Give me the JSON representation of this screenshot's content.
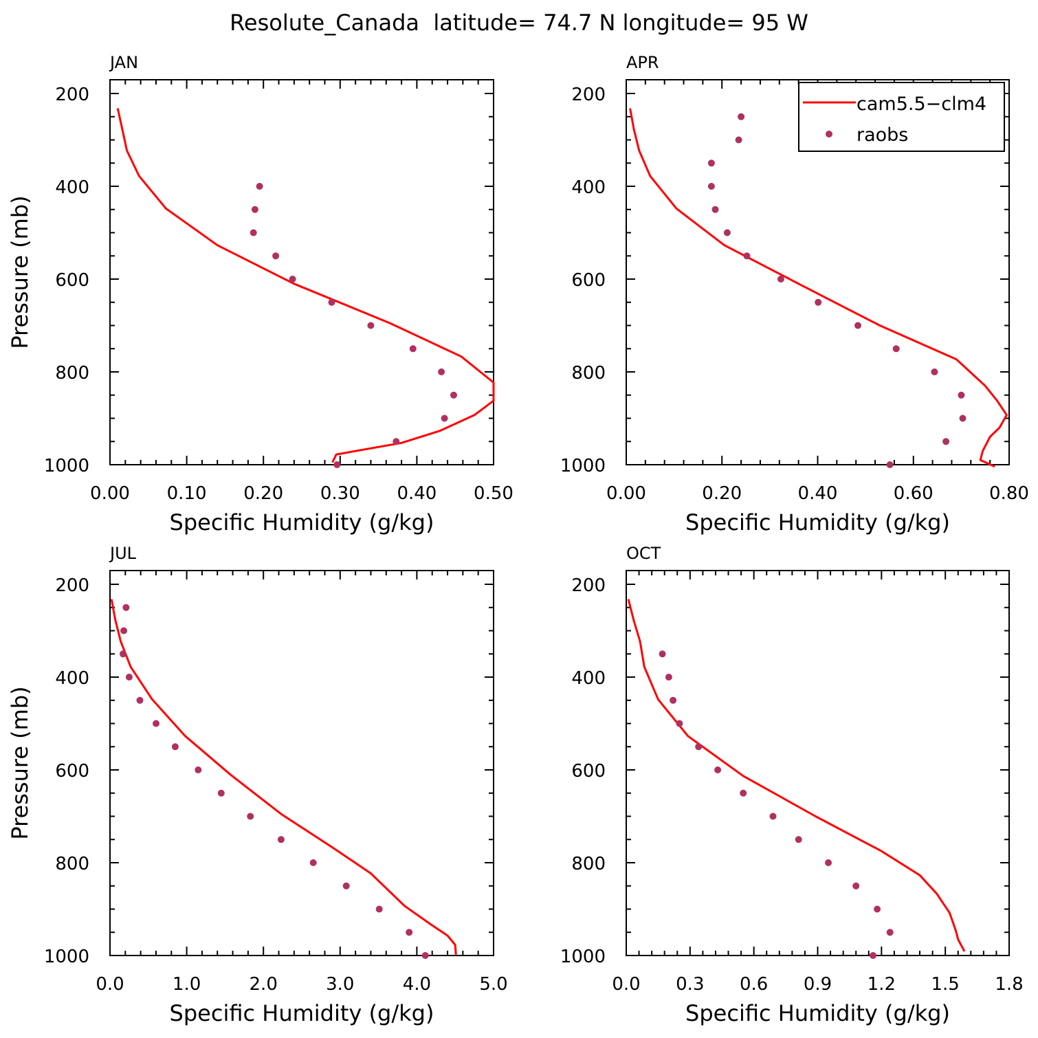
{
  "figure": {
    "title": "Resolute_Canada  latitude= 74.7 N longitude= 95 W"
  },
  "legend": {
    "placement": "top-right of APR panel",
    "model_label": "cam5.5−clm4",
    "obs_label": "raobs"
  },
  "colors": {
    "model": "#ff0000",
    "obs": "#b03060",
    "axis": "#000000"
  },
  "chart_data": [
    {
      "type": "line",
      "panel": "JAN",
      "title": "JAN",
      "xlabel": "Specific Humidity (g/kg)",
      "ylabel": "Pressure (mb)",
      "xlim": [
        0,
        0.5
      ],
      "ylim": [
        1000,
        200
      ],
      "y_inverted": true,
      "xticks": [
        "0.00",
        "0.10",
        "0.20",
        "0.30",
        "0.40",
        "0.50"
      ],
      "yticks": [
        "200",
        "400",
        "600",
        "800",
        "1000"
      ],
      "series": [
        {
          "name": "cam5.5−clm4",
          "style": "line",
          "points": [
            [
              0.01,
              232
            ],
            [
              0.016,
              277
            ],
            [
              0.022,
              323
            ],
            [
              0.038,
              378
            ],
            [
              0.073,
              448
            ],
            [
              0.14,
              527
            ],
            [
              0.24,
              610
            ],
            [
              0.365,
              695
            ],
            [
              0.458,
              767
            ],
            [
              0.5,
              823
            ],
            [
              0.5,
              862
            ],
            [
              0.475,
              893
            ],
            [
              0.43,
              927
            ],
            [
              0.38,
              953
            ],
            [
              0.295,
              978
            ],
            [
              0.29,
              995
            ]
          ]
        },
        {
          "name": "raobs",
          "style": "markers",
          "points": [
            [
              0.195,
              400
            ],
            [
              0.189,
              450
            ],
            [
              0.187,
              500
            ],
            [
              0.216,
              550
            ],
            [
              0.238,
              600
            ],
            [
              0.289,
              650
            ],
            [
              0.34,
              700
            ],
            [
              0.395,
              750
            ],
            [
              0.432,
              800
            ],
            [
              0.448,
              850
            ],
            [
              0.436,
              900
            ],
            [
              0.373,
              950
            ],
            [
              0.296,
              1000
            ]
          ]
        }
      ]
    },
    {
      "type": "line",
      "panel": "APR",
      "title": "APR",
      "xlabel": "Specific Humidity (g/kg)",
      "ylabel": "",
      "xlim": [
        0,
        0.8
      ],
      "ylim": [
        1000,
        200
      ],
      "y_inverted": true,
      "xticks": [
        "0.00",
        "0.20",
        "0.40",
        "0.60",
        "0.80"
      ],
      "yticks": [
        "200",
        "400",
        "600",
        "800",
        "1000"
      ],
      "series": [
        {
          "name": "cam5.5−clm4",
          "style": "line",
          "points": [
            [
              0.008,
              232
            ],
            [
              0.016,
              277
            ],
            [
              0.027,
              323
            ],
            [
              0.05,
              378
            ],
            [
              0.105,
              448
            ],
            [
              0.205,
              527
            ],
            [
              0.36,
              610
            ],
            [
              0.53,
              700
            ],
            [
              0.69,
              773
            ],
            [
              0.75,
              830
            ],
            [
              0.775,
              862
            ],
            [
              0.795,
              893
            ],
            [
              0.78,
              920
            ],
            [
              0.76,
              940
            ],
            [
              0.745,
              970
            ],
            [
              0.74,
              990
            ],
            [
              0.77,
              1004
            ]
          ]
        },
        {
          "name": "raobs",
          "style": "markers",
          "points": [
            [
              0.24,
              250
            ],
            [
              0.235,
              300
            ],
            [
              0.178,
              350
            ],
            [
              0.178,
              400
            ],
            [
              0.186,
              450
            ],
            [
              0.211,
              500
            ],
            [
              0.252,
              550
            ],
            [
              0.323,
              600
            ],
            [
              0.401,
              650
            ],
            [
              0.484,
              700
            ],
            [
              0.564,
              750
            ],
            [
              0.644,
              800
            ],
            [
              0.7,
              850
            ],
            [
              0.703,
              900
            ],
            [
              0.668,
              950
            ],
            [
              0.551,
              1000
            ]
          ]
        }
      ]
    },
    {
      "type": "line",
      "panel": "JUL",
      "title": "JUL",
      "xlabel": "Specific Humidity (g/kg)",
      "ylabel": "Pressure (mb)",
      "xlim": [
        0,
        5.0
      ],
      "ylim": [
        1000,
        200
      ],
      "y_inverted": true,
      "xticks": [
        "0.0",
        "1.0",
        "2.0",
        "3.0",
        "4.0",
        "5.0"
      ],
      "yticks": [
        "200",
        "400",
        "600",
        "800",
        "1000"
      ],
      "series": [
        {
          "name": "cam5.5−clm4",
          "style": "line",
          "points": [
            [
              0.02,
              232
            ],
            [
              0.07,
              277
            ],
            [
              0.14,
              323
            ],
            [
              0.27,
              378
            ],
            [
              0.55,
              448
            ],
            [
              0.98,
              527
            ],
            [
              1.57,
              610
            ],
            [
              2.23,
              695
            ],
            [
              2.9,
              767
            ],
            [
              3.4,
              823
            ],
            [
              3.84,
              893
            ],
            [
              4.2,
              935
            ],
            [
              4.4,
              957
            ],
            [
              4.5,
              977
            ],
            [
              4.51,
              998
            ]
          ]
        },
        {
          "name": "raobs",
          "style": "markers",
          "points": [
            [
              0.21,
              250
            ],
            [
              0.18,
              300
            ],
            [
              0.17,
              350
            ],
            [
              0.25,
              400
            ],
            [
              0.39,
              450
            ],
            [
              0.6,
              500
            ],
            [
              0.85,
              550
            ],
            [
              1.15,
              600
            ],
            [
              1.45,
              650
            ],
            [
              1.83,
              700
            ],
            [
              2.23,
              750
            ],
            [
              2.65,
              800
            ],
            [
              3.08,
              850
            ],
            [
              3.51,
              900
            ],
            [
              3.9,
              950
            ],
            [
              4.11,
              1000
            ]
          ]
        }
      ]
    },
    {
      "type": "line",
      "panel": "OCT",
      "title": "OCT",
      "xlabel": "Specific Humidity (g/kg)",
      "ylabel": "",
      "xlim": [
        0,
        1.8
      ],
      "ylim": [
        1000,
        200
      ],
      "y_inverted": true,
      "xticks": [
        "0.0",
        "0.3",
        "0.6",
        "0.9",
        "1.2",
        "1.5",
        "1.8"
      ],
      "yticks": [
        "200",
        "400",
        "600",
        "800",
        "1000"
      ],
      "series": [
        {
          "name": "cam5.5−clm4",
          "style": "line",
          "points": [
            [
              0.01,
              232
            ],
            [
              0.035,
              277
            ],
            [
              0.065,
              323
            ],
            [
              0.085,
              378
            ],
            [
              0.15,
              448
            ],
            [
              0.29,
              527
            ],
            [
              0.55,
              613
            ],
            [
              0.89,
              700
            ],
            [
              1.2,
              775
            ],
            [
              1.38,
              827
            ],
            [
              1.46,
              867
            ],
            [
              1.52,
              908
            ],
            [
              1.55,
              947
            ],
            [
              1.56,
              965
            ],
            [
              1.59,
              991
            ]
          ]
        },
        {
          "name": "raobs",
          "style": "markers",
          "points": [
            [
              0.17,
              350
            ],
            [
              0.2,
              400
            ],
            [
              0.22,
              450
            ],
            [
              0.25,
              500
            ],
            [
              0.34,
              550
            ],
            [
              0.43,
              600
            ],
            [
              0.55,
              650
            ],
            [
              0.69,
              700
            ],
            [
              0.81,
              750
            ],
            [
              0.95,
              800
            ],
            [
              1.08,
              850
            ],
            [
              1.18,
              900
            ],
            [
              1.24,
              950
            ],
            [
              1.16,
              1000
            ]
          ]
        }
      ]
    }
  ]
}
